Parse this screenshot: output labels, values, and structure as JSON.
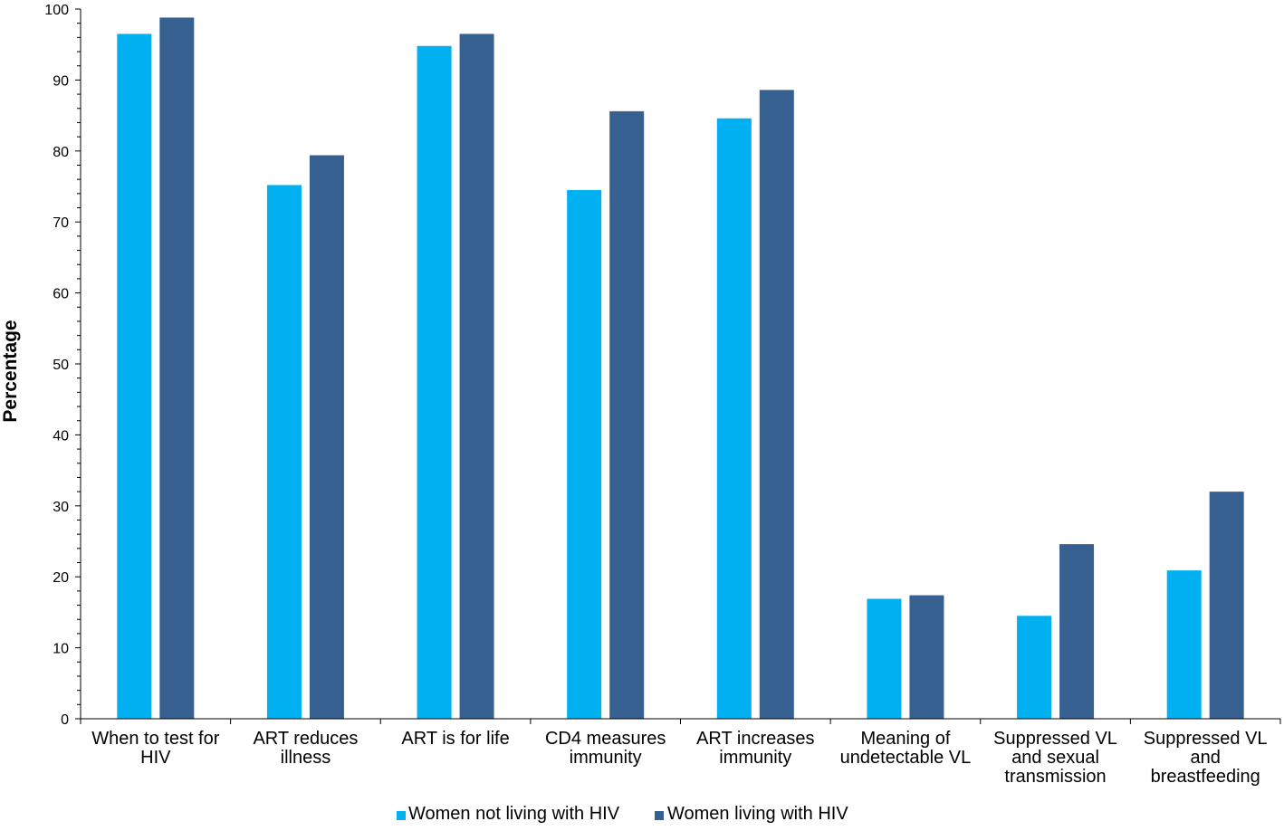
{
  "chart_data": {
    "type": "bar",
    "title": "",
    "xlabel": "",
    "ylabel": "Percentage",
    "ylim": [
      0,
      100
    ],
    "yticks": [
      0,
      10,
      20,
      30,
      40,
      50,
      60,
      70,
      80,
      90,
      100
    ],
    "categories": [
      [
        "When to test for",
        "HIV"
      ],
      [
        "ART reduces",
        "illness"
      ],
      [
        "ART is for life"
      ],
      [
        "CD4 measures",
        "immunity"
      ],
      [
        "ART increases",
        "immunity"
      ],
      [
        "Meaning of",
        "undetectable VL"
      ],
      [
        "Suppressed VL",
        "and sexual",
        "transmission"
      ],
      [
        "Suppressed VL",
        "and",
        "breastfeeding"
      ]
    ],
    "series": [
      {
        "name": "Women not living with HIV",
        "color": "#00b0f0",
        "values": [
          96.5,
          75.2,
          94.8,
          74.5,
          84.6,
          16.9,
          14.5,
          20.9
        ]
      },
      {
        "name": "Women living with HIV",
        "color": "#35608f",
        "values": [
          98.8,
          79.4,
          96.5,
          85.6,
          88.6,
          17.4,
          24.6,
          32.0
        ]
      }
    ],
    "legend": {
      "position": "bottom"
    },
    "grid": false
  }
}
